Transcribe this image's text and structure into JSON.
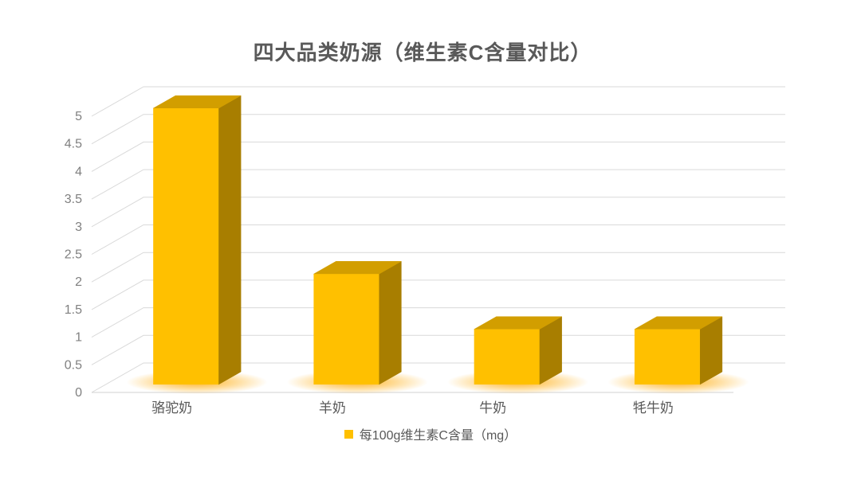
{
  "title": "四大品类奶源（维生素C含量对比）",
  "chart_data": {
    "type": "bar",
    "style": "3d-column",
    "title": "四大品类奶源（维生素C含量对比）",
    "categories": [
      "骆驼奶",
      "羊奶",
      "牛奶",
      "牦牛奶"
    ],
    "series": [
      {
        "name": "每100g维生素C含量（mg）",
        "values": [
          5,
          2,
          1,
          1
        ]
      }
    ],
    "xlabel": "",
    "ylabel": "",
    "ylim": [
      0,
      5
    ],
    "ytick_step": 0.5,
    "ytick_labels": [
      "0",
      "0.5",
      "1",
      "1.5",
      "2",
      "2.5",
      "3",
      "3.5",
      "4",
      "4.5",
      "5"
    ],
    "grid": true,
    "legend_position": "bottom",
    "colors": {
      "bar_front": "#FFC000",
      "bar_side": "#A87E00",
      "bar_top": "#D29E00",
      "glow": "#FFA800",
      "gridline": "#D9D9D9",
      "axis_line": "#D2D2D2",
      "tick_label": "#808080",
      "category_label": "#595959",
      "title": "#595959",
      "legend_text": "#595959"
    }
  },
  "legend": {
    "label": "每100g维生素C含量（mg）",
    "swatch_color": "#FFC000"
  }
}
